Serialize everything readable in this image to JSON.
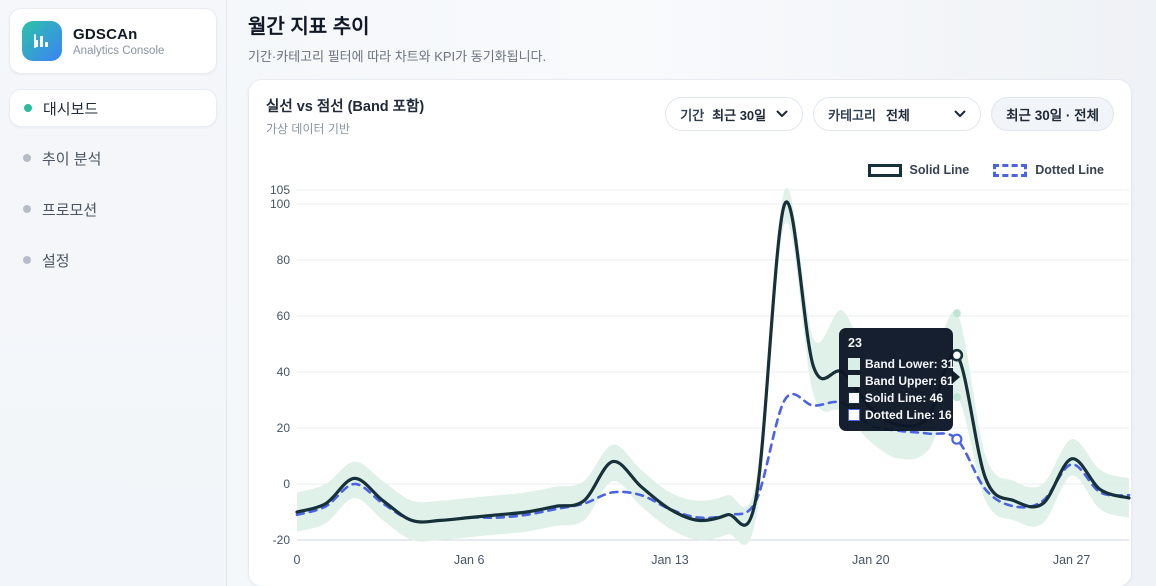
{
  "sidebar": {
    "logo": {
      "title": "GDSCAn",
      "subtitle": "Analytics Console"
    },
    "items": [
      {
        "label": "대시보드",
        "active": true
      },
      {
        "label": "추이 분석",
        "active": false
      },
      {
        "label": "프로모션",
        "active": false
      },
      {
        "label": "설정",
        "active": false
      }
    ]
  },
  "header": {
    "title": "월간 지표 추이",
    "subtitle": "기간·카테고리 필터에 따라 차트와 KPI가 동기화됩니다."
  },
  "card": {
    "title": "실선 vs 점선 (Band 포함)",
    "subtitle": "가상 데이터 기반",
    "filters": {
      "period_label": "기간",
      "period_value": "최근 30일",
      "category_label": "카테고리",
      "category_value": "전체",
      "summary": "최근 30일 · 전체"
    }
  },
  "legend": [
    {
      "label": "Solid Line",
      "style": "solid"
    },
    {
      "label": "Dotted Line",
      "style": "dotted"
    }
  ],
  "tooltip": {
    "title": "23",
    "rows": [
      {
        "label": "Band Lower",
        "value": 31,
        "swatch_fill": "#d9eee4",
        "swatch_border": "#d9eee4"
      },
      {
        "label": "Band Upper",
        "value": 61,
        "swatch_fill": "#d9eee4",
        "swatch_border": "#d9eee4"
      },
      {
        "label": "Solid Line",
        "value": 46,
        "swatch_fill": "#ffffff",
        "swatch_border": "#17313a"
      },
      {
        "label": "Dotted Line",
        "value": 16,
        "swatch_fill": "#ffffff",
        "swatch_border": "#4a63e0"
      }
    ]
  },
  "chart_data": {
    "type": "line",
    "x": [
      0,
      1,
      2,
      3,
      4,
      5,
      6,
      7,
      8,
      9,
      10,
      11,
      12,
      13,
      14,
      15,
      16,
      17,
      18,
      19,
      20,
      21,
      22,
      23,
      24,
      25,
      26,
      27,
      28,
      29
    ],
    "x_tick_labels": [
      {
        "x": 0,
        "label": "0"
      },
      {
        "x": 6,
        "label": "Jan 6"
      },
      {
        "x": 13,
        "label": "Jan 13"
      },
      {
        "x": 20,
        "label": "Jan 20"
      },
      {
        "x": 27,
        "label": "Jan 27"
      }
    ],
    "y_ticks": [
      105,
      100,
      80,
      60,
      40,
      20,
      0,
      -20
    ],
    "ylim": [
      -20,
      105
    ],
    "grid": true,
    "legend_position": "top-right",
    "hover_index": 23,
    "series": [
      {
        "name": "Solid Line",
        "values": [
          -10,
          -7,
          2,
          -6,
          -13,
          -13,
          -12,
          -11,
          -10,
          -8,
          -6,
          8,
          -1,
          -9,
          -13,
          -11,
          -5,
          100,
          42,
          40,
          27,
          21,
          24,
          46,
          2,
          -6,
          -7,
          9,
          -2,
          -5
        ]
      },
      {
        "name": "Dotted Line",
        "values": [
          -11,
          -8,
          0,
          -7,
          -13,
          -13,
          -12,
          -12,
          -11,
          -9,
          -7,
          -3,
          -4,
          -9,
          -12,
          -11,
          -6,
          30,
          28,
          29,
          21,
          19,
          18,
          16,
          -2,
          -8,
          -6,
          7,
          -3,
          -4
        ]
      },
      {
        "name": "Band Upper",
        "values": [
          -3,
          0,
          8,
          1,
          -6,
          -6,
          -5,
          -4,
          -3,
          -1,
          1,
          14,
          5,
          -3,
          -6,
          -4,
          1,
          105,
          52,
          62,
          41,
          34,
          38,
          61,
          10,
          1,
          0,
          16,
          5,
          2
        ]
      },
      {
        "name": "Band Lower",
        "values": [
          -17,
          -14,
          -5,
          -13,
          -20,
          -20,
          -19,
          -18,
          -17,
          -15,
          -13,
          1,
          -8,
          -16,
          -20,
          -18,
          -12,
          93,
          32,
          26,
          15,
          9,
          12,
          31,
          -6,
          -13,
          -14,
          3,
          -9,
          -12
        ]
      }
    ],
    "colors": {
      "solid_line": "#17313a",
      "dotted_line": "#4a63e0",
      "band_fill": "#ddf0e7",
      "band_marker": "#bfe5d4",
      "grid_line": "#e9edf1",
      "axis_line": "#cfd6de",
      "tick_text": "#475467"
    }
  }
}
